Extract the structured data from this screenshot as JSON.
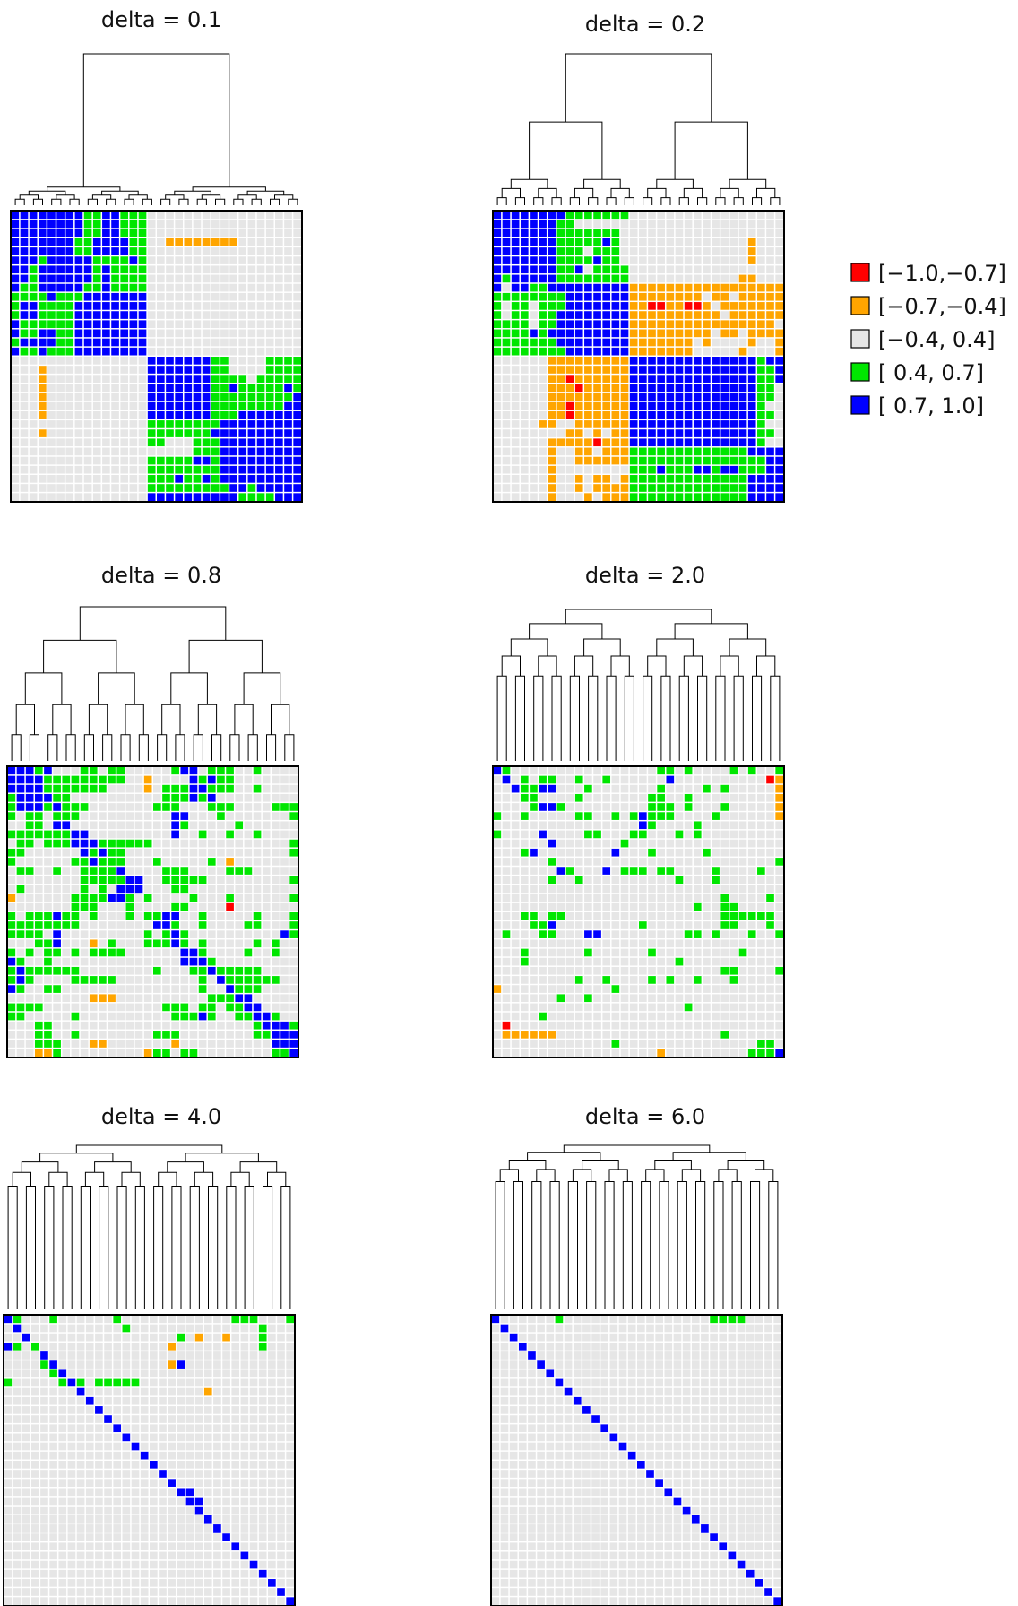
{
  "chart_data": {
    "type": "heatmap",
    "grid_size": 32,
    "legend": {
      "placement": "right",
      "bins": [
        {
          "code": 0,
          "label": "[−1.0,−0.7]",
          "color": "#ff0000"
        },
        {
          "code": 1,
          "label": "[−0.7,−0.4]",
          "color": "#ffa500"
        },
        {
          "code": 2,
          "label": "[−0.4, 0.4]",
          "color": "#e6e6e6"
        },
        {
          "code": 3,
          "label": "[ 0.4, 0.7]",
          "color": "#00e600"
        },
        {
          "code": 4,
          "label": "[ 0.7, 1.0]",
          "color": "#0000ff"
        }
      ]
    },
    "panels": [
      {
        "title": "delta = 0.1",
        "delta": 0.1,
        "matrix": [
          "44444444334433322222222222222222",
          "44444444334433322222222222222222",
          "44444444334433322222222222222222",
          "44444443344443322111111112222222",
          "44444443344443322222222222222222",
          "44434444433334322222222222222222",
          "44344444434333322222222222222222",
          "44344444434333322222222222222222",
          "43344444334333322222222222222222",
          "33334333444444422222222222222222",
          "34433334444444422222222222222222",
          "34433334444444422222222222222222",
          "43333334444444422222222222222222",
          "43344334444444422222222222222222",
          "34444334444444422222222222222222",
          "43343334444444422222222222222222",
          "22222222222222244444443322223333",
          "22212222222222244444443322223333",
          "22212222222222244444443333233333",
          "22212222222222244444443343333343",
          "22212222222222244444443333333334",
          "22212222222222244444443333333344",
          "22212222222222244444443334444444",
          "22222222222222233333333444444444",
          "22212222222222233333334444444444",
          "22222222222222233222333444444444",
          "22222222222222222222333444444444",
          "22222222222222233333443444444444",
          "22222222222222233333333444444444",
          "22222222222222233343343444444444",
          "22222222222222233333333344344444",
          "22222222222222244444444443333444"
        ]
      },
      {
        "title": "delta = 0.2",
        "delta": 0.2,
        "matrix": [
          "44444444333333322222222222222222",
          "44444443322222222222222222222222",
          "44444443333333222222222222222222",
          "44444443333343222222222222221222",
          "44444443332333222222222222221222",
          "44444443333433222222222222221222",
          "44444443342333322222222222222222",
          "43444443333333322222222222211222",
          "42443344444444411111111111111111",
          "33333333444444411111111211211111",
          "32332333444444411001100121111111",
          "32332334444444411111111112111111",
          "33332334444444411111111111111112",
          "33334344444444411111111121121111",
          "33333334444444411111112122221221",
          "33333333444444411111112222212221",
          "22222211111111144444444444444344",
          "22222211111111144444444444444334",
          "22222211011111144444444444444334",
          "22222211101111144444444444444332",
          "22222211111111144444444444444332",
          "22222211011111144444444444444322",
          "22222211011111144444444444444332",
          "22222112211111144444444444444322",
          "22222222112121144444444444444332",
          "22222211111011144444444444444322",
          "22222212211211133333333333334444",
          "22222212211111133333333333333344",
          "22222212222222233343334434433344",
          "22222212212112133333333333334444",
          "22222212212111133333333333334444",
          "22222212221211133333333333334444"
        ]
      },
      {
        "title": "delta = 0.8",
        "delta": 0.8,
        "matrix": [
          "44434222332332222234423332232222",
          "44443333333332212222434332222222",
          "44443333333222212333443332232222",
          "34444332222222222333434222222222",
          "34443433322222223332223332222333",
          "32332333222222222244222322222223",
          "22332442222222222243222223222222",
          "33333334422222222242232232232222",
          "23323334443333332222222222222223",
          "33222222434332222222222222222223",
          "32222223343332223222223212222222",
          "23322322333342222333222233322222",
          "22222222333334422333332222222223",
          "23222222323244422233222222222222",
          "12222223333443232222322232222223",
          "22222223332223222233222202222222",
          "32333433232223233442232222232223",
          "33333333222222224432232222332223",
          "33332422222222232343222222222243",
          "22233422212322233343232222232322",
          "32323323233332222224432222322322",
          "43223222222222222224443222222222",
          "34333333222222223222334333332222",
          "34322223333322222222232433333322",
          "43223322222222222222232243332222",
          "22222222211122222222223334422222",
          "33332222222222222333233233442222",
          "33222223222222222233343223344322",
          "22233222222222222222222222234443",
          "22233223222222223332222222233444",
          "22233322211222222212222222222444",
          "22211322222222213323322222222334"
        ]
      },
      {
        "title": "delta = 2.0",
        "delta": 2.0,
        "matrix": [
          "43222222222222222233232222323223",
          "24232332232232222224222222222201",
          "22433442223222222232222323222221",
          "22233222232222222332232222222221",
          "22223443222222222333232223222221",
          "32232222233223234333222232222221",
          "22222222222222224322223222222222",
          "32222422223322233222323222222222",
          "22222242222222322222222222222222",
          "22234222222224222322222322222222",
          "22222232222222222222222222222223",
          "22222224322242333233222232222322",
          "22222232232222222222322232222222",
          "22222222222222222222222222222222",
          "22222222222222222222222223222232",
          "22222222222222222222223223322222",
          "22233233222222222222222223333332",
          "22223342222222223222222223322232",
          "23222332224422222222233232223223",
          "22222222222222222222222222222222",
          "22232222223222222322222222232222",
          "22232222222222222222322222222222",
          "22222222222222222222222223322223",
          "22222222232232222323223222322222",
          "12222222222223222222222222222222",
          "22222223223222222222222222222222",
          "22222222222222222222232222222222",
          "22222322222222222222222222222222",
          "20222222222222222222222222222222",
          "21111112222222222222222223222222",
          "22222222222223222222222222222332",
          "22222222222222222212222222223334"
        ]
      },
      {
        "title": "delta = 4.0",
        "delta": 4.0,
        "matrix": [
          "43222322222232222222222223332223",
          "24222222222223222222222222223222",
          "22422222222222222223212212223222",
          "43232222222222222212222222223222",
          "22224222222222222222222222222222",
          "22223422222222222214222222222222",
          "22222342222222222222222222222222",
          "32222234323333322222222222222222",
          "22222222422222222222221222222222",
          "22222222242222222222222222222222",
          "22222222224222222222222222222222",
          "22222222222422222222222222222222",
          "22222222222242222222222222222222",
          "22222222222224222222222222222222",
          "22222222222222422222222222222222",
          "22222222222222242222222222222222",
          "22222222222222224222222222222222",
          "22222222222222222422222222222222",
          "22222222222222222242222222222222",
          "22222222222222222224422222222222",
          "22222222222222222222442222222222",
          "22222222222222222222242222222222",
          "22222222222222222222224222222222",
          "22222222222222222222222422222222",
          "22222222222222222222222242222222",
          "22222222222222222222222224222222",
          "22222222222222222222222222422222",
          "22222222222222222222222222242222",
          "22222222222222222222222222224222",
          "22222222222222222222222222222422",
          "22222222222222222222222222222242",
          "22222222222222222222222222222224"
        ]
      },
      {
        "title": "delta = 6.0",
        "delta": 6.0,
        "matrix": [
          "42222223222222222222222233332222",
          "24222222222222222222222222222222",
          "22422222222222222222222222222222",
          "22242222222222222222222222222222",
          "22224222222222222222222222222222",
          "22222422222222222222222222222222",
          "22222242222222222222222222222222",
          "22222224222222222222222222222222",
          "22222222422222222222222222222222",
          "22222222242222222222222222222222",
          "22222222224222222222222222222222",
          "22222222222422222222222222222222",
          "22222222222242222222222222222222",
          "22222222222224222222222222222222",
          "22222222222222422222222222222222",
          "22222222222222242222222222222222",
          "22222222222222224222222222222222",
          "22222222222222222422222222222222",
          "22222222222222222242222222222222",
          "22222222222222222224222222222222",
          "22222222222222222222422222222222",
          "22222222222222222222242222222222",
          "22222222222222222222224222222222",
          "22222222222222222222222422222222",
          "22222222222222222222222242222222",
          "22222222222222222222222224222222",
          "22222222222222222222222222422222",
          "22222222222222222222222222242222",
          "22222222222222222222222222224222",
          "22222222222222222222222222222422",
          "22222222222222222222222222222242",
          "22222222222222222222222222222224"
        ]
      }
    ]
  }
}
